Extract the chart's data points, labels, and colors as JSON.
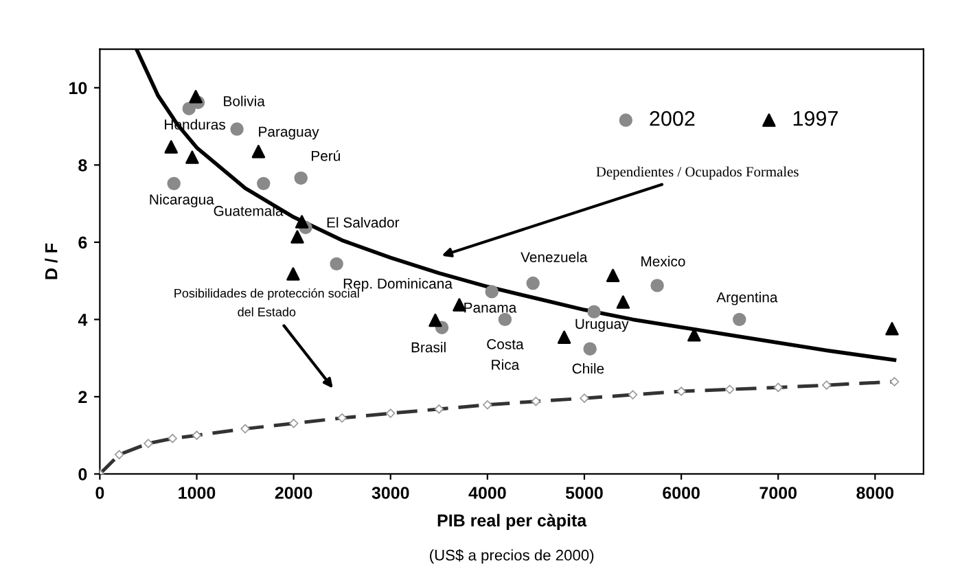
{
  "chart_data": {
    "type": "scatter",
    "xlabel": "PIB real per càpita",
    "ylabel": "D / F",
    "xlim": [
      0,
      8500
    ],
    "ylim": [
      0,
      11
    ],
    "xticks": [
      0,
      1000,
      2000,
      3000,
      4000,
      5000,
      6000,
      7000,
      8000
    ],
    "yticks": [
      0,
      2,
      4,
      6,
      8,
      10
    ],
    "grid": false,
    "legend": "top right",
    "series": [
      {
        "name": "2002",
        "marker": "circle",
        "color": "#8a8a8a",
        "value_labels": [
          "Bolivia",
          "Honduras",
          "Paraguay",
          "Perú",
          "Guatemala",
          "Nicaragua",
          "El Salvador",
          "Rep. Dominicana",
          "Panama",
          "Venezuela",
          "Mexico",
          "Argentina",
          "Uruguay",
          "Costa\nRica",
          "Brasil",
          "Chile"
        ],
        "x": [
          1014,
          920,
          1415,
          2075,
          1689,
          764,
          2123,
          2443,
          4045,
          4470,
          5752,
          6600,
          5100,
          4181,
          3530,
          5058
        ],
        "values": [
          9.62,
          9.46,
          8.93,
          7.66,
          7.52,
          7.52,
          6.38,
          5.44,
          4.72,
          4.94,
          4.88,
          4.0,
          4.2,
          4.0,
          3.79,
          3.24
        ]
      },
      {
        "name": "1997",
        "marker": "triangle",
        "color": "#000000",
        "x": [
          990,
          736,
          953,
          1637,
          2085,
          2038,
          1995,
          3710,
          3462,
          4792,
          5295,
          5400,
          6133,
          8175
        ],
        "values": [
          9.77,
          8.47,
          8.2,
          8.35,
          6.53,
          6.14,
          5.18,
          4.38,
          3.98,
          3.54,
          5.14,
          4.45,
          3.6,
          3.76
        ]
      },
      {
        "type": "line",
        "marker": "none",
        "line_style": "solid",
        "color": "#000000",
        "x": [
          378,
          600,
          800,
          1000,
          1500,
          2000,
          2500,
          3000,
          3500,
          4000,
          4500,
          5000,
          5500,
          6000,
          6500,
          7000,
          7500,
          8200
        ],
        "values": [
          11.0,
          9.8,
          9.05,
          8.45,
          7.4,
          6.65,
          6.05,
          5.6,
          5.2,
          4.85,
          4.55,
          4.25,
          4.0,
          3.8,
          3.6,
          3.4,
          3.2,
          2.95
        ]
      },
      {
        "type": "line",
        "marker": "diamond",
        "line_style": "dashed",
        "color": "#333333",
        "x": [
          0,
          200,
          500,
          750,
          1000,
          1500,
          2000,
          2500,
          3000,
          3500,
          4000,
          4500,
          5000,
          5500,
          6000,
          6500,
          7000,
          7500,
          8200
        ],
        "values": [
          0,
          0.5,
          0.79,
          0.92,
          1.0,
          1.17,
          1.31,
          1.45,
          1.57,
          1.68,
          1.79,
          1.88,
          1.96,
          2.05,
          2.14,
          2.19,
          2.24,
          2.3,
          2.39
        ]
      }
    ],
    "annotations": [
      "Dependientes / Ocupados Formales",
      "Posibilidades de protección social\ndel Estado",
      "(US$ a precios de 2000)"
    ]
  }
}
